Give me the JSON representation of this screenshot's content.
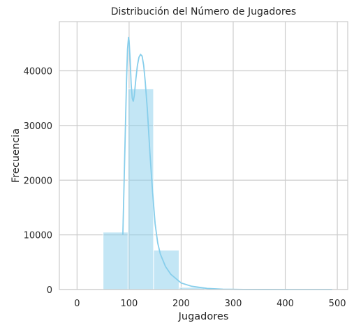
{
  "chart_data": {
    "type": "bar",
    "title": "Distribución del Número de Jugadores",
    "xlabel": "Jugadores",
    "ylabel": "Frecuencia",
    "xlim": [
      -34,
      520
    ],
    "ylim": [
      0,
      49000
    ],
    "x_ticks": [
      0,
      100,
      200,
      300,
      400,
      500
    ],
    "y_ticks": [
      0,
      10000,
      20000,
      30000,
      40000
    ],
    "grid": true,
    "bins": [
      {
        "start": 0,
        "end": 50,
        "value": 0
      },
      {
        "start": 50,
        "end": 98,
        "value": 10500
      },
      {
        "start": 98,
        "end": 147,
        "value": 36700
      },
      {
        "start": 147,
        "end": 196,
        "value": 7200
      },
      {
        "start": 196,
        "end": 245,
        "value": 400
      },
      {
        "start": 245,
        "end": 294,
        "value": 100
      },
      {
        "start": 294,
        "end": 343,
        "value": 30
      },
      {
        "start": 343,
        "end": 392,
        "value": 10
      },
      {
        "start": 392,
        "end": 441,
        "value": 5
      },
      {
        "start": 441,
        "end": 490,
        "value": 3
      }
    ],
    "kde_curve": {
      "x": [
        88,
        92,
        95,
        97,
        99,
        100,
        102,
        104,
        106,
        108,
        110,
        113,
        116,
        119,
        122,
        125,
        128,
        131,
        135,
        140,
        145,
        150,
        155,
        160,
        170,
        180,
        200,
        220,
        250,
        280,
        320,
        400,
        490
      ],
      "y": [
        10000,
        26000,
        38000,
        44000,
        46200,
        45500,
        42000,
        37500,
        35000,
        34400,
        35500,
        38500,
        41000,
        42500,
        43000,
        42700,
        41000,
        38000,
        33000,
        25000,
        18000,
        12000,
        8500,
        6500,
        4200,
        2800,
        1200,
        600,
        200,
        60,
        15,
        0,
        0
      ]
    },
    "colors": {
      "bar": "#87CEEB",
      "bar_opacity": 0.5,
      "kde": "#87CEEB"
    }
  }
}
